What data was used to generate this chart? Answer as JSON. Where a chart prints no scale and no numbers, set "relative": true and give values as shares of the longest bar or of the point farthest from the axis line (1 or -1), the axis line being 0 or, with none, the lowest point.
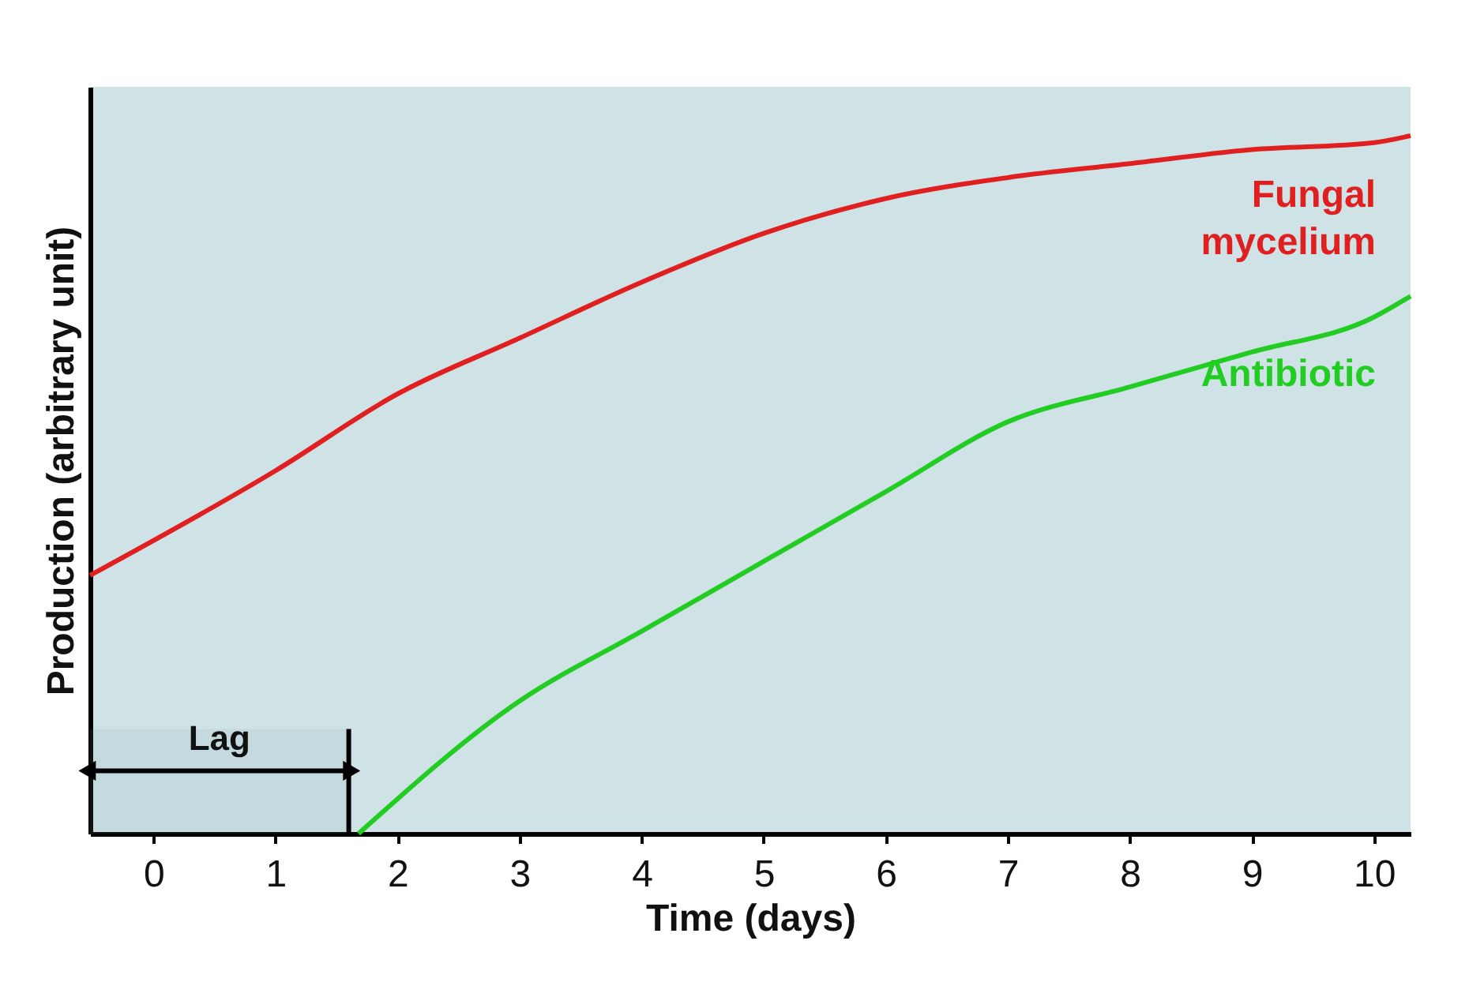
{
  "chart_data": {
    "type": "line",
    "relative": true,
    "xlabel": "Time (days)",
    "ylabel": "Production (arbitrary unit)",
    "xlim": [
      -0.52,
      10.3
    ],
    "xticks": [
      0,
      1,
      2,
      3,
      4,
      5,
      6,
      7,
      8,
      9,
      10
    ],
    "grid": false,
    "marker": "none",
    "line_style": "solid",
    "series": [
      {
        "name": "Fungal mycelium",
        "color": "#e02020",
        "x": [
          -0.52,
          1,
          2,
          3,
          4,
          5,
          6,
          7,
          8,
          9,
          10,
          10.3
        ],
        "values": [
          0.37,
          0.52,
          0.63,
          0.71,
          0.79,
          0.86,
          0.91,
          0.94,
          0.96,
          0.98,
          0.99,
          1.0
        ]
      },
      {
        "name": "Antibiotic",
        "color": "#22cc22",
        "x": [
          1.68,
          3,
          4,
          5,
          6,
          7,
          8,
          9,
          10,
          10.3
        ],
        "values": [
          0,
          0.19,
          0.29,
          0.39,
          0.49,
          0.59,
          0.64,
          0.69,
          0.74,
          0.77
        ]
      }
    ],
    "ref_lines": [
      {
        "axis": "x",
        "value": 1.6
      }
    ],
    "bands": [
      {
        "axis": "x",
        "from": -0.52,
        "to": 1.6,
        "label": "Lag"
      }
    ]
  }
}
